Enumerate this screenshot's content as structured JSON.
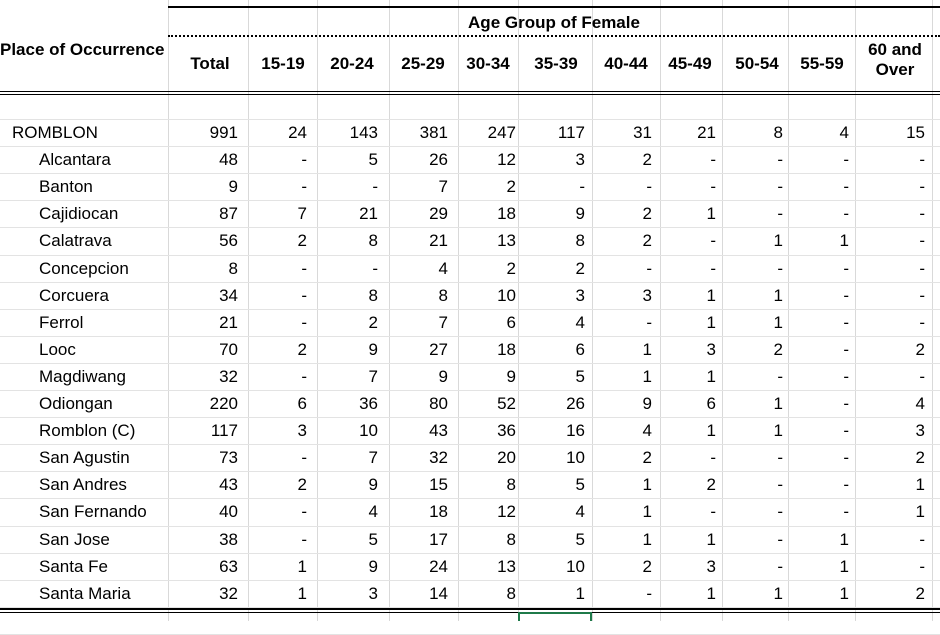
{
  "table": {
    "title_place": "Place of Occurrence",
    "title_age": "Age Group of Female",
    "columns": [
      "Total",
      "15-19",
      "20-24",
      "25-29",
      "30-34",
      "35-39",
      "40-44",
      "45-49",
      "50-54",
      "55-59",
      "60 and Over"
    ],
    "rows": [
      {
        "place": "ROMBLON",
        "total": true,
        "values": [
          "991",
          "24",
          "143",
          "381",
          "247",
          "117",
          "31",
          "21",
          "8",
          "4",
          "15"
        ]
      },
      {
        "place": "Alcantara",
        "values": [
          "48",
          "-",
          "5",
          "26",
          "12",
          "3",
          "2",
          "-",
          "-",
          "-",
          "-"
        ]
      },
      {
        "place": "Banton",
        "values": [
          "9",
          "-",
          "-",
          "7",
          "2",
          "-",
          "-",
          "-",
          "-",
          "-",
          "-"
        ]
      },
      {
        "place": "Cajidiocan",
        "values": [
          "87",
          "7",
          "21",
          "29",
          "18",
          "9",
          "2",
          "1",
          "-",
          "-",
          "-"
        ]
      },
      {
        "place": "Calatrava",
        "values": [
          "56",
          "2",
          "8",
          "21",
          "13",
          "8",
          "2",
          "-",
          "1",
          "1",
          "-"
        ]
      },
      {
        "place": "Concepcion",
        "values": [
          "8",
          "-",
          "-",
          "4",
          "2",
          "2",
          "-",
          "-",
          "-",
          "-",
          "-"
        ]
      },
      {
        "place": "Corcuera",
        "values": [
          "34",
          "-",
          "8",
          "8",
          "10",
          "3",
          "3",
          "1",
          "1",
          "-",
          "-"
        ]
      },
      {
        "place": "Ferrol",
        "values": [
          "21",
          "-",
          "2",
          "7",
          "6",
          "4",
          "-",
          "1",
          "1",
          "-",
          "-"
        ]
      },
      {
        "place": "Looc",
        "values": [
          "70",
          "2",
          "9",
          "27",
          "18",
          "6",
          "1",
          "3",
          "2",
          "-",
          "2"
        ]
      },
      {
        "place": "Magdiwang",
        "values": [
          "32",
          "-",
          "7",
          "9",
          "9",
          "5",
          "1",
          "1",
          "-",
          "-",
          "-"
        ]
      },
      {
        "place": "Odiongan",
        "values": [
          "220",
          "6",
          "36",
          "80",
          "52",
          "26",
          "9",
          "6",
          "1",
          "-",
          "4"
        ]
      },
      {
        "place": "Romblon (C)",
        "values": [
          "117",
          "3",
          "10",
          "43",
          "36",
          "16",
          "4",
          "1",
          "1",
          "-",
          "3"
        ]
      },
      {
        "place": "San Agustin",
        "values": [
          "73",
          "-",
          "7",
          "32",
          "20",
          "10",
          "2",
          "-",
          "-",
          "-",
          "2"
        ]
      },
      {
        "place": "San Andres",
        "values": [
          "43",
          "2",
          "9",
          "15",
          "8",
          "5",
          "1",
          "2",
          "-",
          "-",
          "1"
        ]
      },
      {
        "place": "San Fernando",
        "values": [
          "40",
          "-",
          "4",
          "18",
          "12",
          "4",
          "1",
          "-",
          "-",
          "-",
          "1"
        ]
      },
      {
        "place": "San Jose",
        "values": [
          "38",
          "-",
          "5",
          "17",
          "8",
          "5",
          "1",
          "1",
          "-",
          "1",
          "-"
        ]
      },
      {
        "place": "Santa Fe",
        "values": [
          "63",
          "1",
          "9",
          "24",
          "13",
          "10",
          "2",
          "3",
          "-",
          "1",
          "-"
        ]
      },
      {
        "place": "Santa Maria",
        "values": [
          "32",
          "1",
          "3",
          "14",
          "8",
          "1",
          "-",
          "1",
          "1",
          "1",
          "2"
        ]
      }
    ]
  }
}
